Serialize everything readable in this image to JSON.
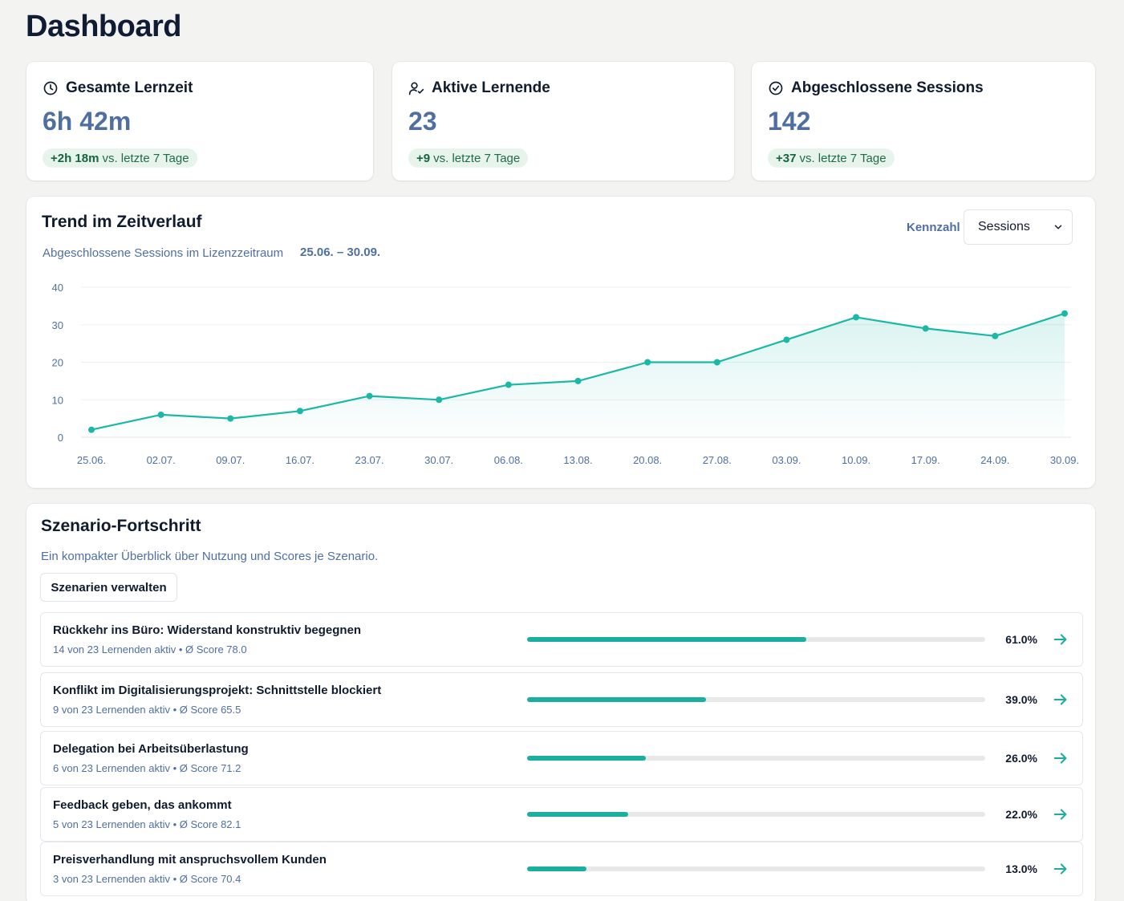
{
  "page": {
    "title": "Dashboard"
  },
  "kpis": [
    {
      "icon": "clock-icon",
      "title": "Gesamte Lernzeit",
      "value": "6h 42m",
      "delta": "+2h 18m",
      "delta_text": "vs. letzte 7 Tage"
    },
    {
      "icon": "user-check-icon",
      "title": "Aktive Lernende",
      "value": "23",
      "delta": "+9",
      "delta_text": "vs. letzte 7 Tage"
    },
    {
      "icon": "check-circle-icon",
      "title": "Abgeschlossene Sessions",
      "value": "142",
      "delta": "+37",
      "delta_text": "vs. letzte 7 Tage"
    }
  ],
  "trend": {
    "title": "Trend im Zeitverlauf",
    "subtitle": "Abgeschlossene Sessions im Lizenzzeitraum",
    "range": "25.06. – 30.09.",
    "metric_label": "Kennzahl",
    "metric_selected": "Sessions"
  },
  "chart_data": {
    "type": "area",
    "title": "",
    "xlabel": "",
    "ylabel": "",
    "categories": [
      "25.06.",
      "02.07.",
      "09.07.",
      "16.07.",
      "23.07.",
      "30.07.",
      "06.08.",
      "13.08.",
      "20.08.",
      "27.08.",
      "03.09.",
      "10.09.",
      "17.09.",
      "24.09.",
      "30.09."
    ],
    "values": [
      2,
      6,
      5,
      7,
      11,
      10,
      14,
      15,
      20,
      20,
      26,
      32,
      29,
      27,
      33
    ],
    "ylim": [
      0,
      40
    ],
    "yticks": [
      0,
      10,
      20,
      30,
      40
    ],
    "grid": true,
    "colors": {
      "line": "#1ab8a6",
      "fill": "#1ab8a6"
    }
  },
  "scenarios": {
    "title": "Szenario-Fortschritt",
    "subtitle": "Ein kompakter Überblick über Nutzung und Scores je Szenario.",
    "manage_label": "Szenarien verwalten",
    "items": [
      {
        "name": "Rückkehr ins Büro: Widerstand konstruktiv begegnen",
        "meta": "14 von 23 Lernenden aktiv • Ø Score 78.0",
        "progress": 0.61,
        "pct": "61.0%"
      },
      {
        "name": "Konflikt im Digitalisierungsprojekt: Schnittstelle blockiert",
        "meta": "9 von 23 Lernenden aktiv • Ø Score 65.5",
        "progress": 0.39,
        "pct": "39.0%"
      },
      {
        "name": "Delegation bei Arbeitsüberlastung",
        "meta": "6 von 23 Lernenden aktiv • Ø Score 71.2",
        "progress": 0.26,
        "pct": "26.0%"
      },
      {
        "name": "Feedback geben, das ankommt",
        "meta": "5 von 23 Lernenden aktiv • Ø Score 82.1",
        "progress": 0.22,
        "pct": "22.0%"
      },
      {
        "name": "Preisverhandlung mit anspruchsvollem Kunden",
        "meta": "3 von 23 Lernenden aktiv • Ø Score 70.4",
        "progress": 0.13,
        "pct": "13.0%"
      }
    ]
  },
  "colors": {
    "accent": "#1ab8a6",
    "value_blue": "#4f6fa3",
    "badge_bg": "#e6f4ec"
  }
}
